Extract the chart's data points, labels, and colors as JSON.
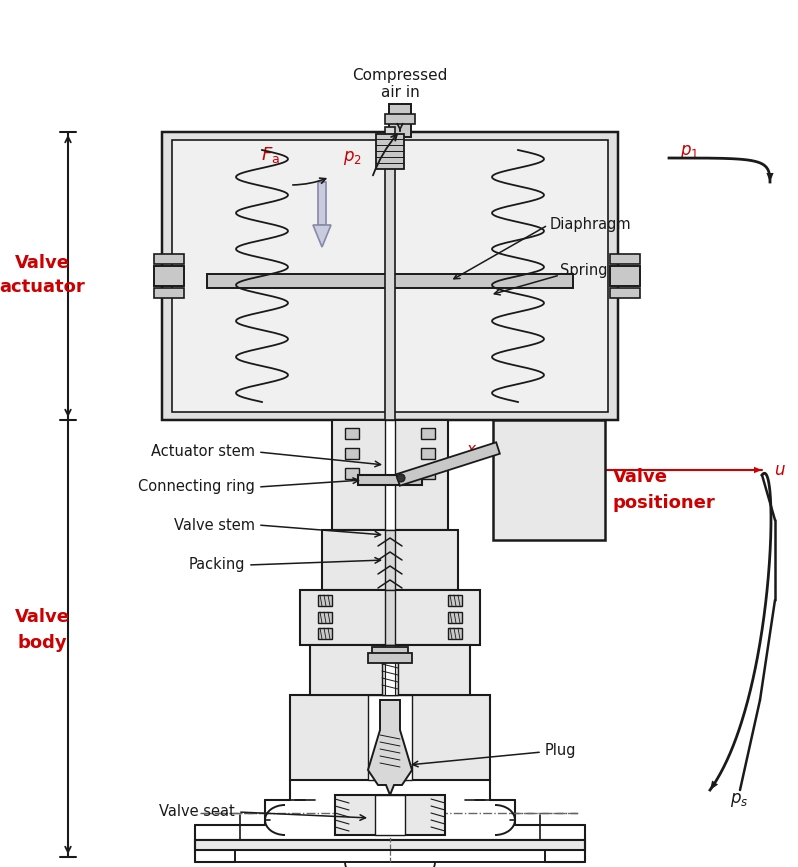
{
  "bg_color": "#ffffff",
  "line_color": "#1a1a1a",
  "gray1": "#c8c8c8",
  "gray2": "#d8d8d8",
  "gray3": "#e8e8e8",
  "red_color": "#cc0000",
  "labels": {
    "compressed_air": "Compressed\nair in",
    "diaphragm": "Diaphragm",
    "valve_actuator": "Valve\nactuator",
    "actuator_stem": "Actuator stem",
    "connecting_ring": "Connecting ring",
    "valve_stem": "Valve stem",
    "packing": "Packing",
    "spring": "Spring",
    "valve_positioner": "Valve\npositioner",
    "plug": "Plug",
    "valve_seat": "Valve seat",
    "valve_body": "Valve\nbody"
  },
  "figsize": [
    7.98,
    8.67
  ],
  "dpi": 100
}
